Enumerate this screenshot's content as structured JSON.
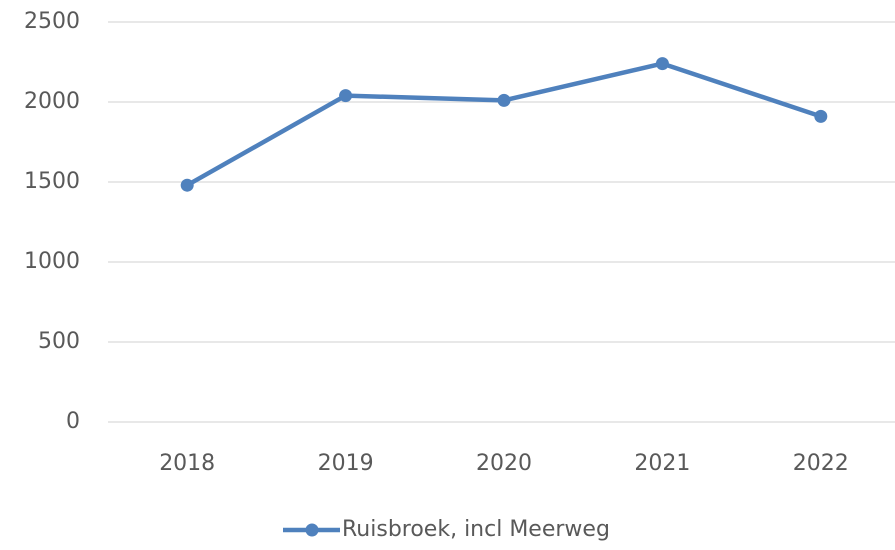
{
  "chart_data": {
    "type": "line",
    "categories": [
      "2018",
      "2019",
      "2020",
      "2021",
      "2022"
    ],
    "series": [
      {
        "name": "Ruisbroek, incl Meerweg",
        "color": "#4f81bd",
        "values": [
          1480,
          2040,
          2010,
          2240,
          1910
        ]
      }
    ],
    "ylim": [
      0,
      2500
    ],
    "yticks": [
      0,
      500,
      1000,
      1500,
      2000,
      2500
    ],
    "grid": true,
    "legend": "bottom"
  }
}
